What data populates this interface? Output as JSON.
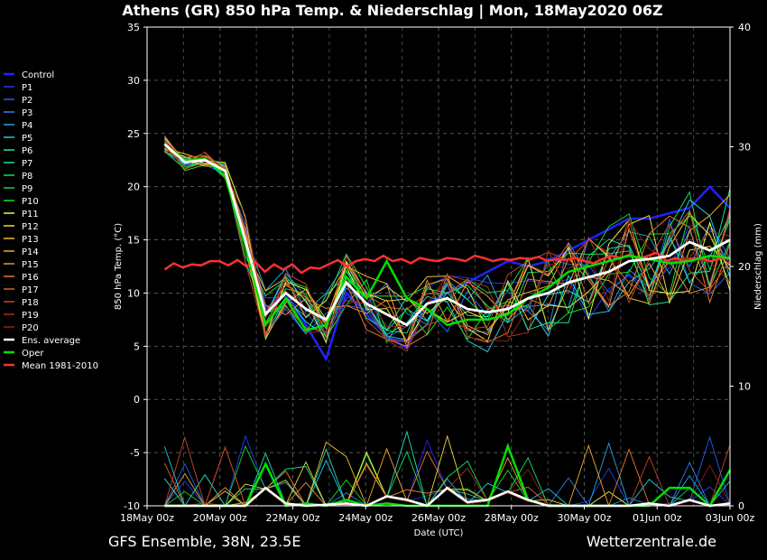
{
  "chart_data": {
    "type": "line",
    "title": "Athens  (GR)  850 hPa Temp. & Niederschlag | Mon, 18May2020 06Z",
    "xlabel": "Date (UTC)",
    "ylabel": "850 hPa Temp. (°C)",
    "ylabel_right": "Niederschlag (mm)",
    "ylim": [
      -10,
      35
    ],
    "ylim_right": [
      0,
      40
    ],
    "yticks": [
      "35",
      "30",
      "25",
      "20",
      "15",
      "10",
      "5",
      "0",
      "-5",
      "-10"
    ],
    "yticks_right": [
      "40",
      "30",
      "20",
      "10",
      "0"
    ],
    "x_tick_labels": [
      "18May 00z",
      "20May 00z",
      "22May 00z",
      "24May 00z",
      "26May 00z",
      "28May 00z",
      "30May 00z",
      "01Jun 00z",
      "03Jun 00z"
    ],
    "grid": true,
    "legend_position": "left",
    "footer_left": "GFS Ensemble, 38N, 23.5E",
    "footer_right": "Wetterzentrale.de",
    "series": [
      {
        "name": "Control",
        "color": "#2222ff"
      },
      {
        "name": "P1",
        "color": "#1f3cf0"
      },
      {
        "name": "P2",
        "color": "#2460ee"
      },
      {
        "name": "P3",
        "color": "#2a80e8"
      },
      {
        "name": "P4",
        "color": "#28a0e0"
      },
      {
        "name": "P5",
        "color": "#22c8e8"
      },
      {
        "name": "P6",
        "color": "#20e0c0"
      },
      {
        "name": "P7",
        "color": "#18e090"
      },
      {
        "name": "P8",
        "color": "#10e060"
      },
      {
        "name": "P9",
        "color": "#10d838"
      },
      {
        "name": "P10",
        "color": "#18e018"
      },
      {
        "name": "P11",
        "color": "#f8f040"
      },
      {
        "name": "P12",
        "color": "#f0d840"
      },
      {
        "name": "P13",
        "color": "#f0c030"
      },
      {
        "name": "P14",
        "color": "#f0a830"
      },
      {
        "name": "P15",
        "color": "#f09030"
      },
      {
        "name": "P16",
        "color": "#e87830"
      },
      {
        "name": "P17",
        "color": "#d86030"
      },
      {
        "name": "P18",
        "color": "#c04828"
      },
      {
        "name": "P19",
        "color": "#a83020"
      },
      {
        "name": "P20",
        "color": "#902020"
      },
      {
        "name": "Ens. average",
        "color": "#ffffff"
      },
      {
        "name": "Oper",
        "color": "#00e000"
      },
      {
        "name": "Mean 1981-2010",
        "color": "#ff3030"
      }
    ],
    "ensemble_mean_temp": [
      24.0,
      22.3,
      22.5,
      21.5,
      15.0,
      8.0,
      10.0,
      8.5,
      7.5,
      11.0,
      9.0,
      8.0,
      7.0,
      9.0,
      9.5,
      8.5,
      8.2,
      8.5,
      9.5,
      10.0,
      11.0,
      11.5,
      12.0,
      13.0,
      13.2,
      13.5,
      14.8,
      14.0,
      15.0
    ],
    "oper_temp": [
      24.0,
      22.5,
      22.6,
      21.0,
      14.5,
      7.0,
      9.5,
      6.5,
      7.0,
      11.5,
      9.5,
      13.0,
      9.5,
      8.5,
      7.0,
      7.5,
      7.5,
      8.0,
      9.5,
      10.5,
      12.0,
      12.5,
      13.0,
      13.5,
      13.2,
      12.8,
      13.0,
      13.5,
      13.3
    ],
    "control_temp": [
      24.0,
      22.4,
      22.2,
      21.8,
      14.8,
      8.5,
      10.0,
      7.0,
      3.8,
      10.0,
      8.0,
      6.0,
      4.8,
      9.0,
      10.0,
      11.0,
      12.0,
      13.0,
      12.5,
      13.0,
      14.0,
      15.0,
      16.0,
      17.0,
      17.0,
      17.5,
      18.0,
      20.0,
      18.0
    ],
    "climate_mean_temp": [
      12.2,
      12.8,
      12.4,
      12.7,
      12.6,
      13.0,
      13.0,
      12.6,
      13.1,
      12.5,
      12.9,
      12.0,
      12.7,
      12.2,
      12.7,
      11.9,
      12.4,
      12.3,
      12.7,
      13.1,
      12.5,
      13.0,
      13.2,
      13.0,
      13.5,
      13.0,
      13.2,
      12.8,
      13.3,
      13.1,
      13.0,
      13.3,
      13.2,
      13.0,
      13.5,
      13.3,
      13.0,
      13.2,
      13.1,
      13.3,
      13.2,
      13.4,
      13.0,
      13.2,
      13.1,
      13.3,
      13.0,
      12.8,
      13.2,
      13.5,
      13.3,
      13.6,
      13.2,
      13.5,
      13.8,
      13.0,
      13.3,
      13.0,
      13.3,
      13.2,
      13.0,
      13.3,
      13.2
    ],
    "ensemble_mean_precip_mm": [
      0,
      0,
      0,
      0,
      0,
      1.5,
      0.2,
      0,
      0.1,
      0.2,
      0,
      0.8,
      0.5,
      0,
      1.5,
      0.3,
      0.5,
      1.2,
      0.5,
      0,
      0,
      0,
      0,
      0,
      0.2,
      0,
      0.5,
      0,
      0.2
    ],
    "oper_precip_mm": [
      0,
      0,
      0,
      0,
      0,
      3.5,
      0,
      0.2,
      0,
      0.5,
      0,
      0.2,
      0,
      0,
      0,
      0,
      0,
      5.0,
      0.5,
      0,
      0,
      0,
      0,
      0,
      0,
      1.5,
      1.5,
      0,
      3.0
    ]
  }
}
